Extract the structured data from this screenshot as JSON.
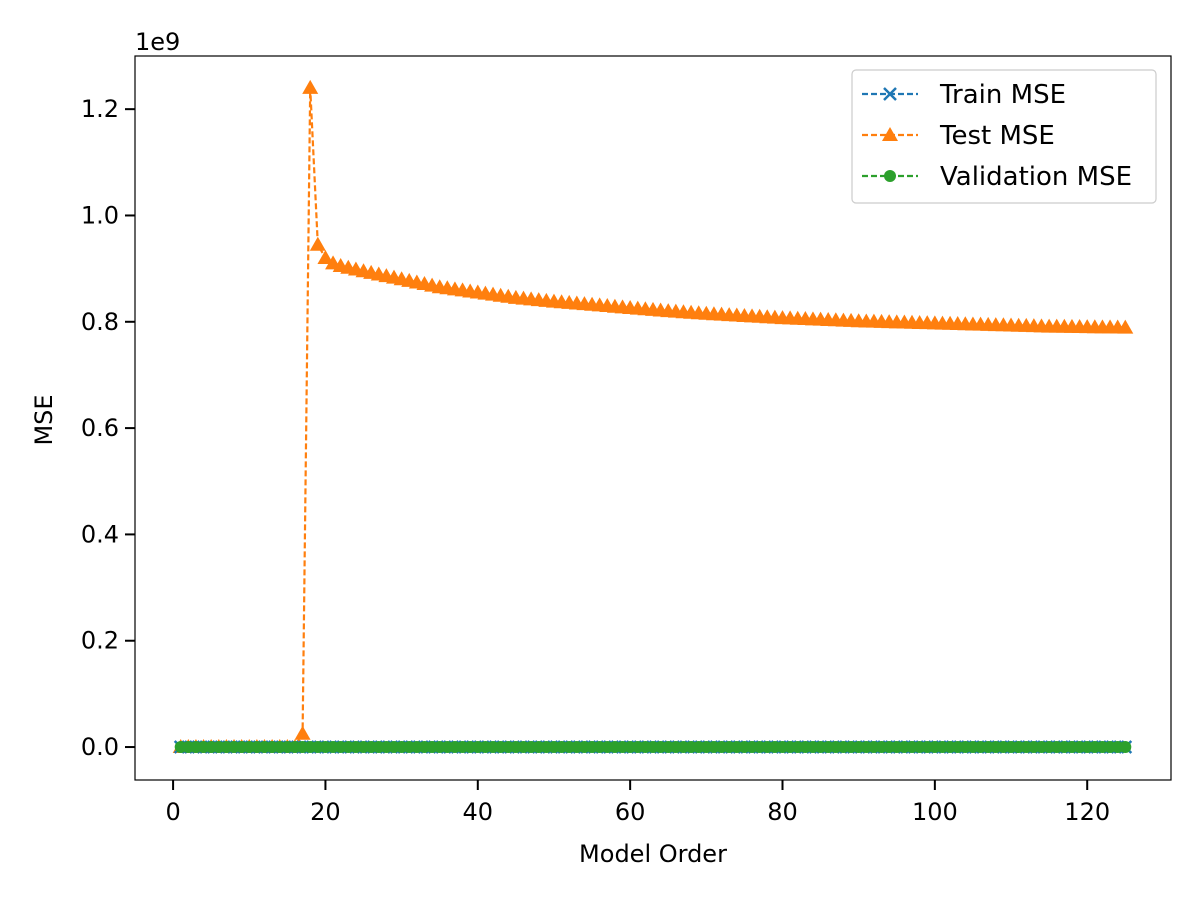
{
  "chart_data": {
    "type": "line",
    "title": "",
    "xlabel": "Model Order",
    "ylabel": "MSE",
    "offset_text": "1e9",
    "xlim": [
      -5,
      131
    ],
    "ylim": [
      -0.062,
      1.3
    ],
    "xticks": [
      0,
      20,
      40,
      60,
      80,
      100,
      120
    ],
    "xtick_labels": [
      "0",
      "20",
      "40",
      "60",
      "80",
      "100",
      "120"
    ],
    "yticks": [
      0.0,
      0.2,
      0.4,
      0.6,
      0.8,
      1.0,
      1.2
    ],
    "ytick_labels": [
      "0.0",
      "0.2",
      "0.4",
      "0.6",
      "0.8",
      "1.0",
      "1.2"
    ],
    "grid": false,
    "legend": "top-right",
    "series": [
      {
        "name": "Train MSE",
        "color": "#1f77b4",
        "marker": "x",
        "linestyle": "dashed",
        "x_start": 1,
        "x_end": 125,
        "values": [
          0,
          0
        ]
      },
      {
        "name": "Test MSE",
        "color": "#ff7f0e",
        "marker": "triangle",
        "linestyle": "dashed",
        "x": [
          1,
          2,
          3,
          4,
          5,
          6,
          7,
          8,
          9,
          10,
          11,
          12,
          13,
          14,
          15,
          16,
          17,
          18,
          19,
          20,
          21,
          22,
          25,
          30,
          35,
          40,
          45,
          50,
          55,
          60,
          65,
          70,
          75,
          80,
          85,
          90,
          95,
          100,
          105,
          110,
          115,
          120,
          125
        ],
        "values": [
          0.0,
          0.0,
          0.0,
          0.0,
          0.0,
          0.0,
          0.0,
          0.0,
          0.0,
          0.0,
          0.0,
          0.0,
          0.0,
          0.0,
          0.0,
          0.0,
          0.025,
          1.24,
          0.945,
          0.92,
          0.91,
          0.905,
          0.895,
          0.88,
          0.865,
          0.855,
          0.845,
          0.838,
          0.832,
          0.826,
          0.82,
          0.815,
          0.811,
          0.807,
          0.804,
          0.801,
          0.799,
          0.797,
          0.795,
          0.793,
          0.791,
          0.79,
          0.789
        ]
      },
      {
        "name": "Validation MSE",
        "color": "#2ca02c",
        "marker": "circle",
        "linestyle": "dashed",
        "x_start": 1,
        "x_end": 125,
        "values": [
          0,
          0
        ]
      }
    ]
  }
}
